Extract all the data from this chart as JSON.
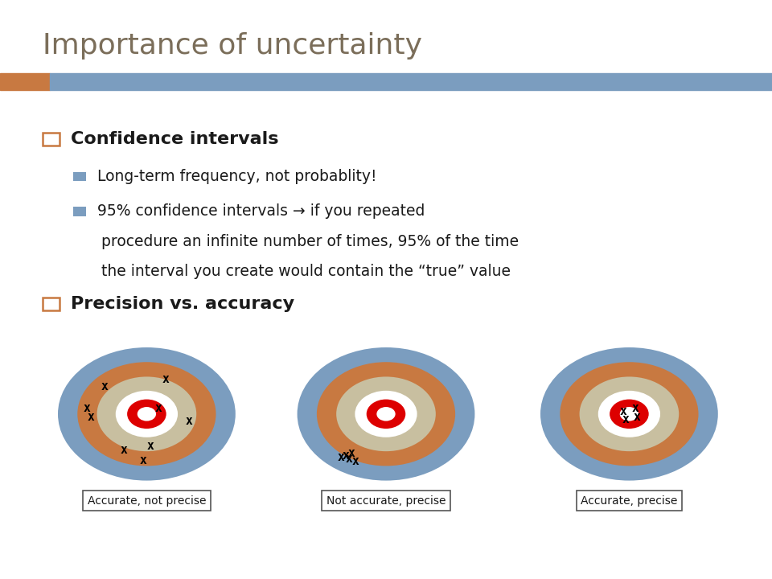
{
  "title": "Importance of uncertainty",
  "title_color": "#7B6E5A",
  "header_bar_color1": "#C87941",
  "header_bar_color2": "#7B9DBF",
  "bg_color": "#FFFFFF",
  "bullet1": "Confidence intervals",
  "sub_bullet1": "Long-term frequency, not probablity!",
  "sub_bullet2_line1": "95% confidence intervals → if you repeated",
  "sub_bullet2_line2": "procedure an infinite number of times, 95% of the time",
  "sub_bullet2_line3": "the interval you create would contain the “true” value",
  "bullet2": "Precision vs. accuracy",
  "sq1_color": "#C87941",
  "sq2_color": "#7B9DBF",
  "ring_blue": "#7B9DBF",
  "ring_orange": "#C87941",
  "ring_tan": "#C8BFA0",
  "ring_white": "#FFFFFF",
  "bullseye_red": "#DD0000",
  "label1": "Accurate, not precise",
  "label2": "Not accurate, precise",
  "label3": "Accurate, precise"
}
